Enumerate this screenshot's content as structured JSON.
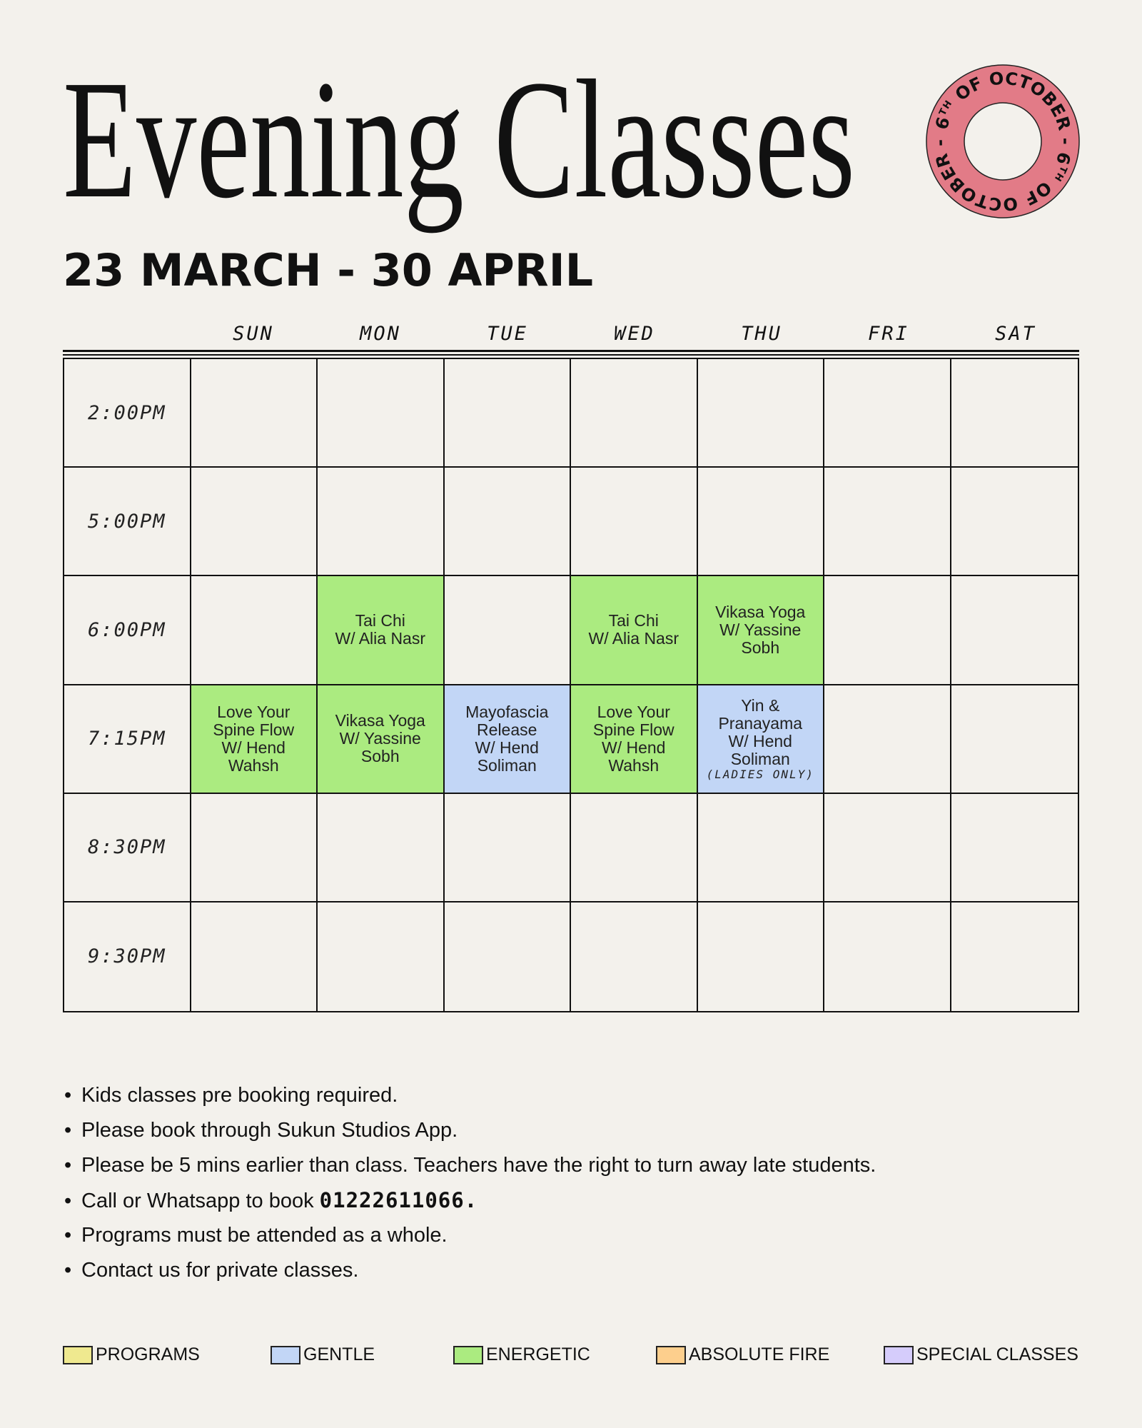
{
  "title": "Evening Classes",
  "date_range": "23 MARCH - 30 APRIL",
  "badge": {
    "number": "6",
    "suffix": "TH",
    "text": " OF OCTOBER - ",
    "color": "#e27b87"
  },
  "days": [
    "SUN",
    "MON",
    "TUE",
    "WED",
    "THU",
    "FRI",
    "SAT"
  ],
  "categories": {
    "programs": {
      "label": "PROGRAMS",
      "color": "#efe98f"
    },
    "gentle": {
      "label": "GENTLE",
      "color": "#c2d6f6"
    },
    "energetic": {
      "label": "ENERGETIC",
      "color": "#abeb80"
    },
    "absolute_fire": {
      "label": "ABSOLUTE FIRE",
      "color": "#fdcf8d"
    },
    "special": {
      "label": "SPECIAL CLASSES",
      "color": "#d5ccfb"
    }
  },
  "schedule": [
    {
      "time": "2:00PM",
      "cells": [
        null,
        null,
        null,
        null,
        null,
        null,
        null
      ]
    },
    {
      "time": "5:00PM",
      "cells": [
        null,
        null,
        null,
        null,
        null,
        null,
        null
      ]
    },
    {
      "time": "6:00PM",
      "cells": [
        null,
        {
          "lines": [
            "Tai Chi",
            "W/ Alia Nasr"
          ],
          "category": "energetic"
        },
        null,
        {
          "lines": [
            "Tai Chi",
            "W/ Alia Nasr"
          ],
          "category": "energetic"
        },
        {
          "lines": [
            "Vikasa Yoga",
            "W/ Yassine",
            "Sobh"
          ],
          "category": "energetic"
        },
        null,
        null
      ]
    },
    {
      "time": "7:15PM",
      "cells": [
        {
          "lines": [
            "Love Your",
            "Spine Flow",
            "W/ Hend",
            "Wahsh"
          ],
          "category": "energetic"
        },
        {
          "lines": [
            "Vikasa Yoga",
            "W/ Yassine",
            "Sobh"
          ],
          "category": "energetic"
        },
        {
          "lines": [
            "Mayofascia",
            "Release",
            "W/ Hend",
            "Soliman"
          ],
          "category": "gentle"
        },
        {
          "lines": [
            "Love Your",
            "Spine Flow",
            "W/ Hend",
            "Wahsh"
          ],
          "category": "energetic"
        },
        {
          "lines": [
            "Yin &",
            "Pranayama",
            "W/ Hend",
            "Soliman"
          ],
          "note": "(LADIES ONLY)",
          "category": "gentle"
        },
        null,
        null
      ]
    },
    {
      "time": "8:30PM",
      "cells": [
        null,
        null,
        null,
        null,
        null,
        null,
        null
      ]
    },
    {
      "time": "9:30PM",
      "cells": [
        null,
        null,
        null,
        null,
        null,
        null,
        null
      ]
    }
  ],
  "notes": [
    {
      "text": "Kids classes pre booking required."
    },
    {
      "text": "Please book through Sukun Studios App."
    },
    {
      "text": "Please be 5 mins earlier than class. Teachers have the right to turn away late students."
    },
    {
      "text": "Call or Whatsapp to book ",
      "bold": "01222611066."
    },
    {
      "text": "Programs must be attended as a whole."
    },
    {
      "text": "Contact us for private classes."
    }
  ],
  "bullet": "•"
}
